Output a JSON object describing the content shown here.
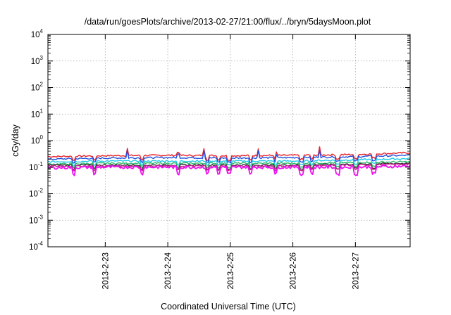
{
  "chart_data": {
    "type": "line",
    "title": "/data/run/goesPlots/archive/2013-02-27/21:00/flux/../bryn/5daysMoon.plot",
    "xlabel": "Coordinated Universal Time (UTC)",
    "ylabel": "cGy/day",
    "y_scale": "log",
    "ylim": [
      0.0001,
      10000
    ],
    "xlim": [
      "2013-02-22T02:00",
      "2013-02-27T21:00"
    ],
    "x_ticks": [
      "2013-2-23",
      "2013-2-24",
      "2013-2-25",
      "2013-2-26",
      "2013-2-27"
    ],
    "x_tick_values": [
      "2013-02-23T00:00",
      "2013-02-24T00:00",
      "2013-02-25T00:00",
      "2013-02-26T00:00",
      "2013-02-27T00:00"
    ],
    "y_ticks": [
      {
        "base": "10",
        "exp": "-4",
        "value": 0.0001
      },
      {
        "base": "10",
        "exp": "-3",
        "value": 0.001
      },
      {
        "base": "10",
        "exp": "-2",
        "value": 0.01
      },
      {
        "base": "10",
        "exp": "-1",
        "value": 0.1
      },
      {
        "base": "10",
        "exp": "0",
        "value": 1
      },
      {
        "base": "10",
        "exp": "1",
        "value": 10
      },
      {
        "base": "10",
        "exp": "2",
        "value": 100
      },
      {
        "base": "10",
        "exp": "3",
        "value": 1000
      },
      {
        "base": "10",
        "exp": "4",
        "value": 10000
      }
    ],
    "grid": true,
    "legend": "none",
    "x": [
      "2013-02-22T02:00",
      "2013-02-23T00:00",
      "2013-02-24T00:00",
      "2013-02-25T00:00",
      "2013-02-26T00:00",
      "2013-02-27T00:00",
      "2013-02-27T21:00"
    ],
    "series": [
      {
        "color": "#e8212a",
        "values": [
          0.25,
          0.27,
          0.28,
          0.27,
          0.28,
          0.3,
          0.35
        ]
      },
      {
        "color": "#1f4fe0",
        "values": [
          0.2,
          0.22,
          0.23,
          0.22,
          0.23,
          0.25,
          0.28
        ]
      },
      {
        "color": "#1fc8e8",
        "values": [
          0.16,
          0.17,
          0.17,
          0.17,
          0.17,
          0.19,
          0.21
        ]
      },
      {
        "color": "#2fb86a",
        "values": [
          0.13,
          0.14,
          0.14,
          0.14,
          0.14,
          0.15,
          0.16
        ]
      },
      {
        "color": "#333333",
        "values": [
          0.12,
          0.12,
          0.12,
          0.12,
          0.12,
          0.13,
          0.14
        ]
      },
      {
        "color": "#c81e8c",
        "values": [
          0.11,
          0.11,
          0.11,
          0.11,
          0.11,
          0.12,
          0.13
        ]
      },
      {
        "color": "#ee10ee",
        "values": [
          0.095,
          0.1,
          0.1,
          0.1,
          0.1,
          0.1,
          0.11
        ]
      }
    ]
  }
}
